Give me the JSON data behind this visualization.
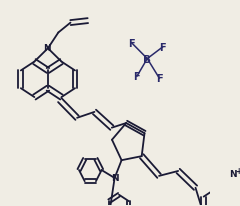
{
  "bg_color": "#f0ede4",
  "line_color": "#1a1a35",
  "bf4_color": "#2a2a6a",
  "lw": 1.3,
  "figsize": [
    2.4,
    2.07
  ],
  "dpi": 100,
  "xlim": [
    0,
    240
  ],
  "ylim": [
    0,
    207
  ]
}
